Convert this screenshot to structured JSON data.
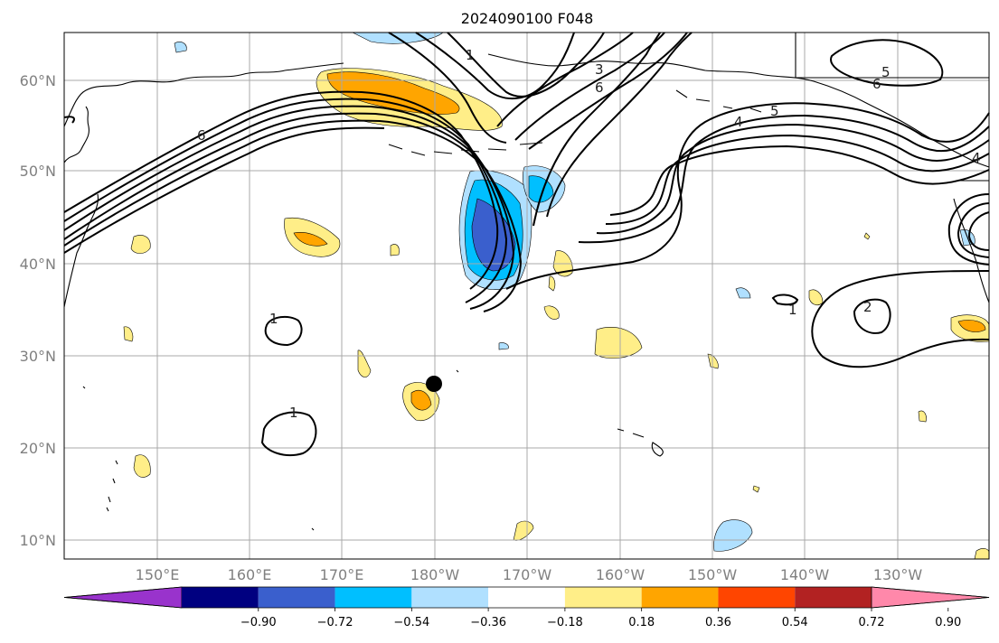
{
  "title": "2024090100 F048",
  "map": {
    "lat_labels": [
      "60°N",
      "50°N",
      "40°N",
      "30°N",
      "20°N",
      "10°N"
    ],
    "lon_labels": [
      "150°E",
      "160°E",
      "170°E",
      "180°W",
      "170°W",
      "160°W",
      "150°W",
      "140°W",
      "130°W"
    ],
    "contour_labels": [
      "1",
      "1",
      "1",
      "1",
      "2",
      "3",
      "4",
      "4",
      "5",
      "5",
      "6",
      "6",
      "6"
    ],
    "marker": {
      "lat": 27,
      "lon": 180,
      "name": "point"
    }
  },
  "colorbar": {
    "ticks": [
      "−0.90",
      "−0.72",
      "−0.54",
      "−0.36",
      "−0.18",
      "0.18",
      "0.36",
      "0.54",
      "0.72",
      "0.90"
    ],
    "colors": [
      "#9933cc",
      "#000080",
      "#3a5fcd",
      "#00bfff",
      "#b0e0ff",
      "#ffffff",
      "#ffee88",
      "#ffa500",
      "#ff4500",
      "#b22222",
      "#ff88aa"
    ]
  }
}
